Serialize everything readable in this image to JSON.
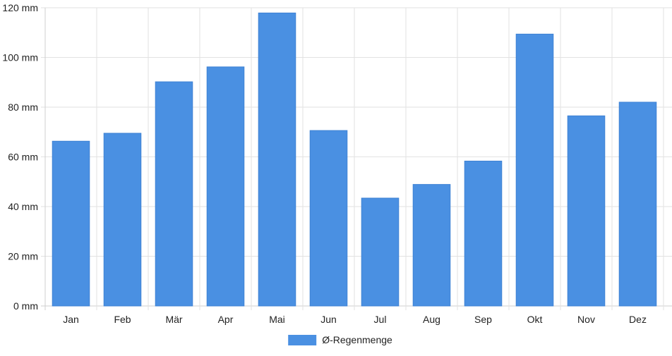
{
  "chart_data": {
    "type": "bar",
    "categories": [
      "Jan",
      "Feb",
      "Mär",
      "Apr",
      "Mai",
      "Jun",
      "Jul",
      "Aug",
      "Sep",
      "Okt",
      "Nov",
      "Dez"
    ],
    "series": [
      {
        "name": "Ø-Regenmenge",
        "values": [
          66.3,
          69.5,
          90.2,
          96.2,
          117.9,
          70.6,
          43.4,
          48.9,
          58.3,
          109.4,
          76.5,
          82.0
        ]
      }
    ],
    "y_unit": "mm",
    "ylim": [
      0,
      120
    ],
    "yticks": [
      0,
      20,
      40,
      60,
      80,
      100,
      120
    ],
    "ytick_labels": [
      "0 mm",
      "20 mm",
      "40 mm",
      "60 mm",
      "80 mm",
      "100 mm",
      "120 mm"
    ],
    "grid": true,
    "legend_position": "bottom-center",
    "colors": {
      "bar": "#4a90e2",
      "grid": "#e2e2e2",
      "axis": "#cfcfcf",
      "text": "#222222"
    }
  }
}
